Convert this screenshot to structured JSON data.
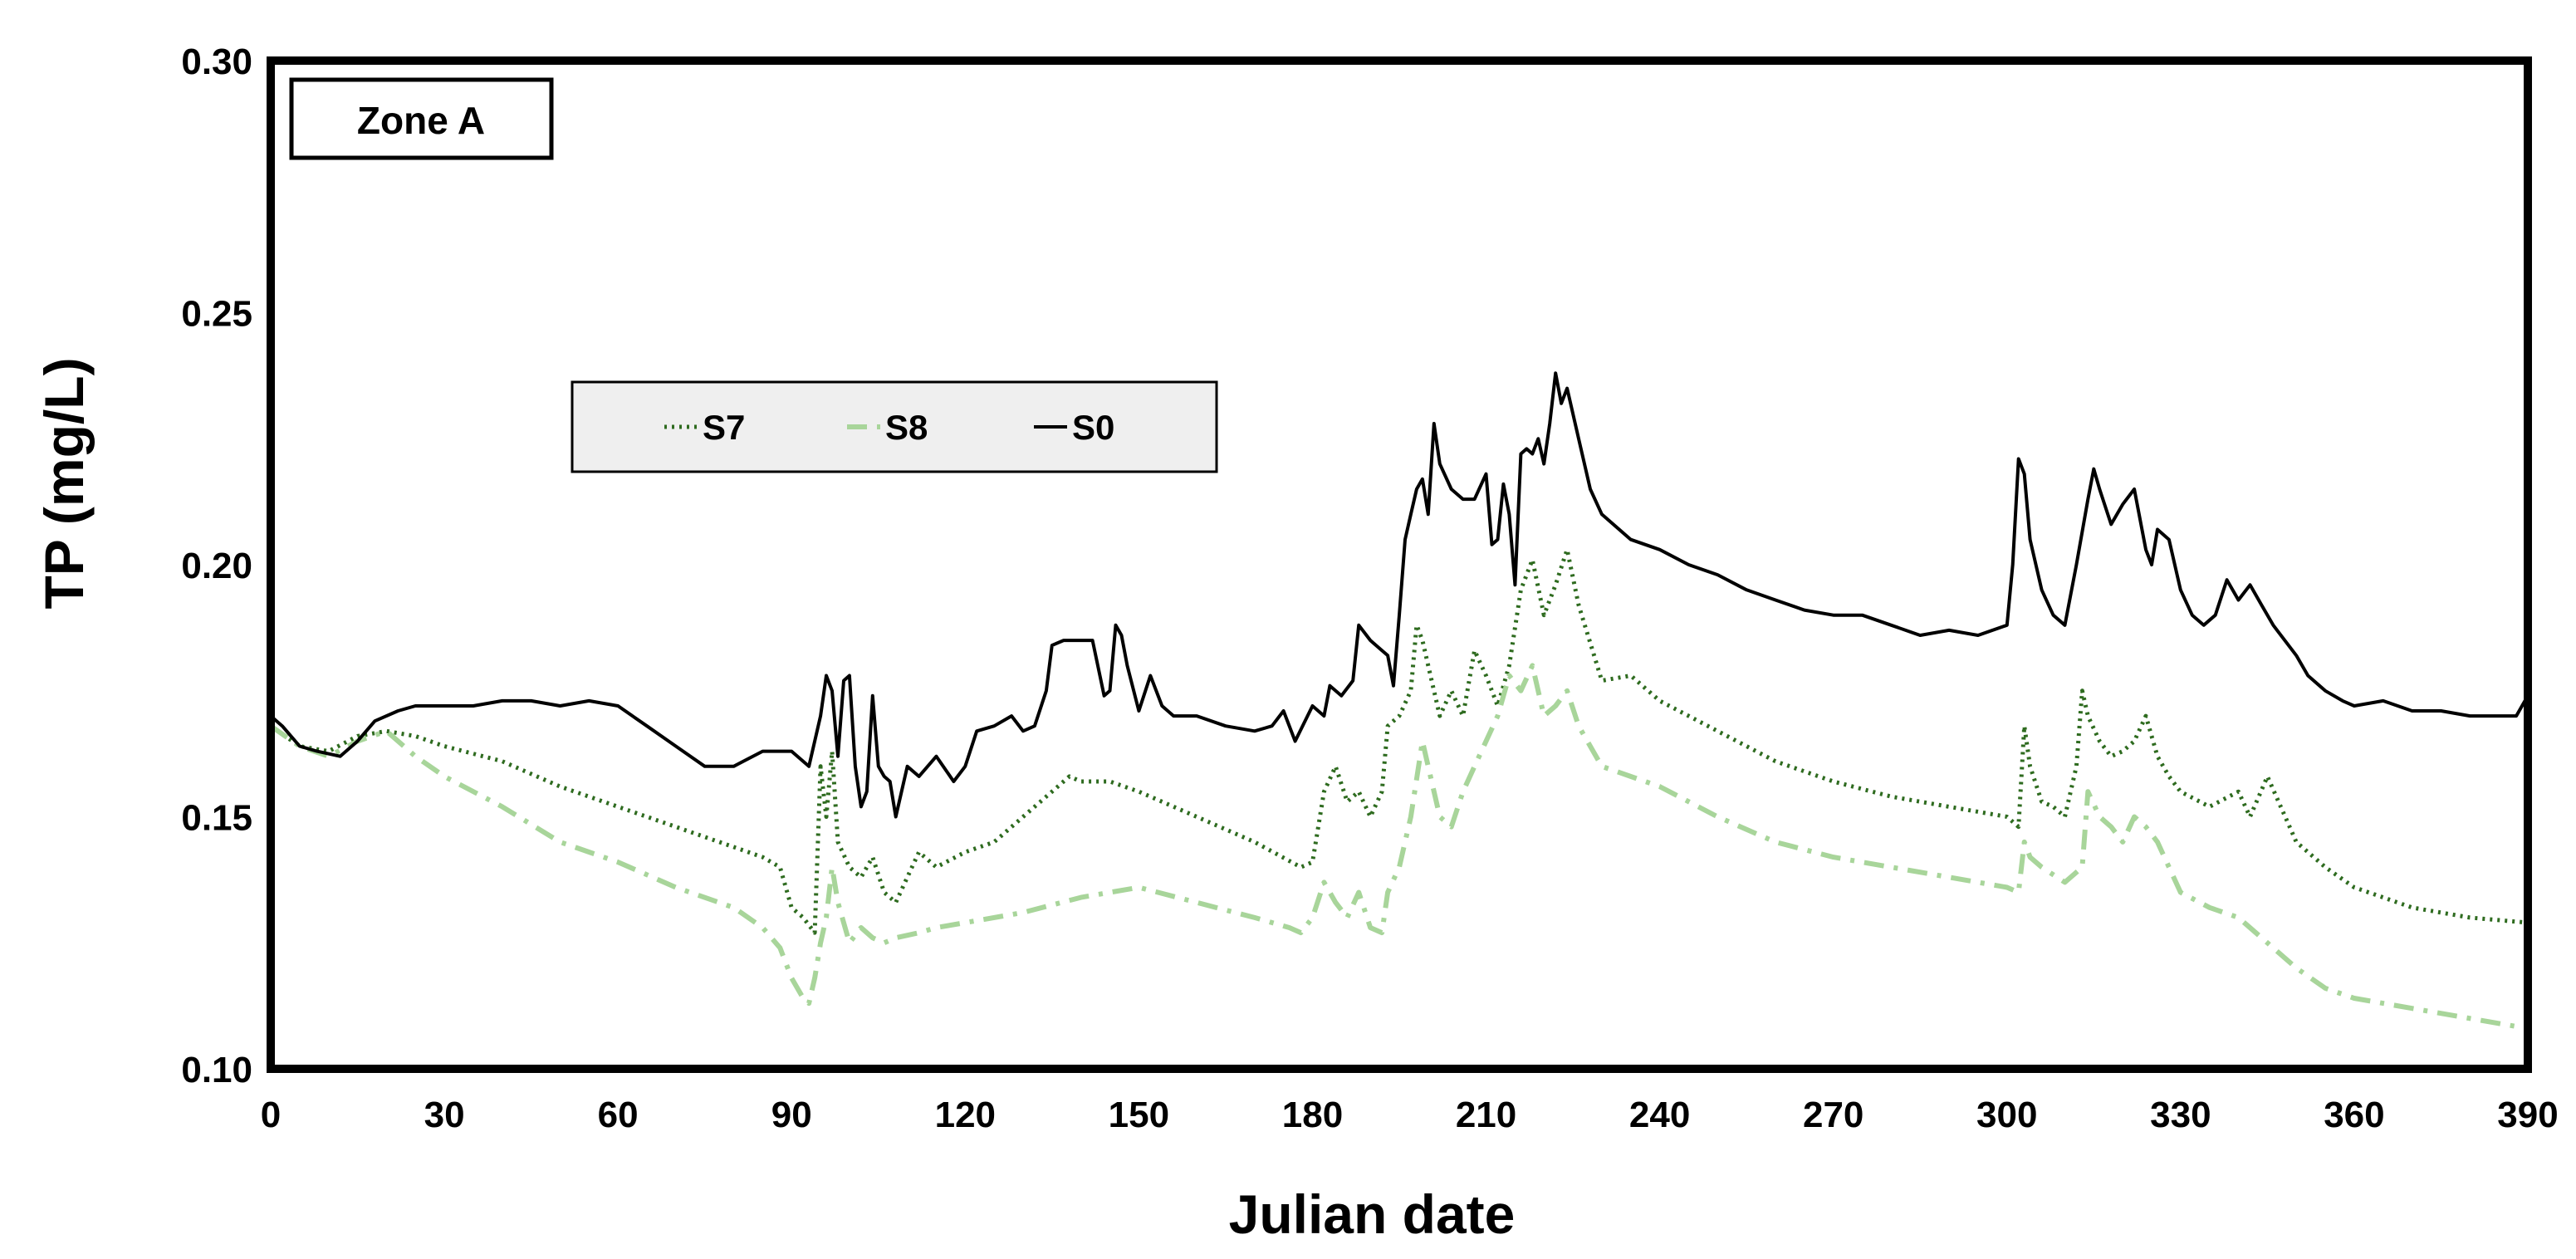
{
  "chart_data": {
    "type": "line",
    "title": "",
    "annotation": "Zone A",
    "xlabel": "Julian date",
    "ylabel": "TP (mg/L)",
    "xlim": [
      0,
      390
    ],
    "ylim": [
      0.1,
      0.3
    ],
    "xticks": [
      "0",
      "30",
      "60",
      "90",
      "120",
      "150",
      "180",
      "210",
      "240",
      "270",
      "300",
      "330",
      "360",
      "390"
    ],
    "yticks": [
      "0.10",
      "0.15",
      "0.20",
      "0.25",
      "0.30"
    ],
    "grid": false,
    "legend_position": "upper-left",
    "series": [
      {
        "name": "S7",
        "color": "#2e6b1f",
        "style": "dotted",
        "x": [
          0,
          5,
          10,
          15,
          20,
          25,
          30,
          40,
          50,
          60,
          70,
          75,
          80,
          85,
          88,
          90,
          92,
          94,
          95,
          96,
          97,
          98,
          100,
          102,
          104,
          106,
          108,
          110,
          112,
          115,
          120,
          125,
          130,
          135,
          138,
          140,
          145,
          150,
          160,
          170,
          178,
          180,
          182,
          184,
          186,
          188,
          190,
          192,
          193,
          195,
          197,
          198,
          199,
          200,
          202,
          204,
          206,
          208,
          210,
          212,
          214,
          216,
          218,
          220,
          222,
          224,
          226,
          230,
          235,
          240,
          250,
          260,
          270,
          280,
          290,
          300,
          302,
          303,
          304,
          306,
          308,
          310,
          312,
          313,
          314,
          316,
          318,
          320,
          322,
          324,
          326,
          328,
          330,
          335,
          340,
          342,
          345,
          350,
          355,
          360,
          365,
          370,
          380,
          390
        ],
        "values": [
          0.168,
          0.164,
          0.163,
          0.166,
          0.167,
          0.166,
          0.164,
          0.161,
          0.156,
          0.152,
          0.148,
          0.146,
          0.144,
          0.142,
          0.14,
          0.132,
          0.13,
          0.127,
          0.16,
          0.15,
          0.163,
          0.145,
          0.14,
          0.138,
          0.142,
          0.135,
          0.133,
          0.138,
          0.143,
          0.14,
          0.143,
          0.145,
          0.15,
          0.155,
          0.158,
          0.157,
          0.157,
          0.155,
          0.15,
          0.145,
          0.14,
          0.141,
          0.155,
          0.16,
          0.153,
          0.155,
          0.15,
          0.155,
          0.168,
          0.17,
          0.175,
          0.188,
          0.185,
          0.18,
          0.17,
          0.175,
          0.17,
          0.183,
          0.178,
          0.172,
          0.18,
          0.195,
          0.201,
          0.19,
          0.196,
          0.203,
          0.192,
          0.177,
          0.178,
          0.173,
          0.167,
          0.161,
          0.157,
          0.154,
          0.152,
          0.15,
          0.148,
          0.168,
          0.16,
          0.153,
          0.152,
          0.15,
          0.16,
          0.175,
          0.17,
          0.165,
          0.162,
          0.163,
          0.165,
          0.17,
          0.162,
          0.158,
          0.155,
          0.152,
          0.155,
          0.15,
          0.158,
          0.145,
          0.14,
          0.136,
          0.134,
          0.132,
          0.13,
          0.129
        ]
      },
      {
        "name": "S8",
        "color": "#a8d59a",
        "style": "dash-dot",
        "x": [
          0,
          5,
          10,
          15,
          20,
          25,
          30,
          40,
          50,
          60,
          70,
          80,
          85,
          88,
          90,
          92,
          93,
          94,
          95,
          96,
          97,
          98,
          100,
          102,
          104,
          106,
          108,
          112,
          115,
          120,
          130,
          140,
          150,
          160,
          170,
          176,
          178,
          180,
          182,
          184,
          186,
          188,
          190,
          192,
          193,
          195,
          197,
          199,
          200,
          202,
          204,
          206,
          208,
          210,
          212,
          214,
          216,
          218,
          220,
          222,
          224,
          226,
          230,
          240,
          250,
          260,
          270,
          280,
          290,
          300,
          302,
          303,
          304,
          306,
          310,
          313,
          314,
          316,
          318,
          320,
          322,
          324,
          326,
          328,
          330,
          335,
          340,
          345,
          350,
          355,
          360,
          370,
          380,
          390
        ],
        "values": [
          0.168,
          0.164,
          0.162,
          0.165,
          0.167,
          0.162,
          0.158,
          0.152,
          0.145,
          0.141,
          0.136,
          0.132,
          0.128,
          0.124,
          0.118,
          0.114,
          0.113,
          0.118,
          0.125,
          0.13,
          0.14,
          0.133,
          0.125,
          0.128,
          0.126,
          0.125,
          0.126,
          0.127,
          0.128,
          0.129,
          0.131,
          0.134,
          0.136,
          0.133,
          0.13,
          0.128,
          0.127,
          0.13,
          0.137,
          0.133,
          0.13,
          0.135,
          0.128,
          0.127,
          0.135,
          0.14,
          0.15,
          0.165,
          0.16,
          0.15,
          0.148,
          0.155,
          0.16,
          0.165,
          0.17,
          0.178,
          0.175,
          0.18,
          0.17,
          0.172,
          0.175,
          0.168,
          0.16,
          0.156,
          0.15,
          0.145,
          0.142,
          0.14,
          0.138,
          0.136,
          0.135,
          0.145,
          0.142,
          0.14,
          0.137,
          0.14,
          0.155,
          0.15,
          0.148,
          0.145,
          0.15,
          0.148,
          0.145,
          0.14,
          0.135,
          0.132,
          0.13,
          0.125,
          0.12,
          0.116,
          0.114,
          0.112,
          0.11,
          0.108
        ]
      },
      {
        "name": "S0",
        "color": "#000000",
        "style": "solid",
        "x": [
          0,
          2,
          5,
          8,
          12,
          15,
          18,
          22,
          25,
          30,
          35,
          40,
          45,
          50,
          55,
          60,
          65,
          70,
          75,
          80,
          85,
          90,
          93,
          95,
          96,
          97,
          98,
          99,
          100,
          101,
          102,
          103,
          104,
          105,
          106,
          107,
          108,
          110,
          112,
          115,
          118,
          120,
          122,
          125,
          128,
          130,
          132,
          134,
          135,
          137,
          140,
          142,
          144,
          145,
          146,
          147,
          148,
          150,
          152,
          154,
          156,
          160,
          165,
          170,
          173,
          175,
          177,
          180,
          182,
          183,
          185,
          187,
          188,
          190,
          192,
          193,
          194,
          195,
          196,
          197,
          198,
          199,
          200,
          201,
          202,
          204,
          206,
          208,
          210,
          211,
          212,
          213,
          214,
          215,
          216,
          217,
          218,
          219,
          220,
          221,
          222,
          223,
          224,
          226,
          228,
          230,
          235,
          240,
          245,
          250,
          255,
          260,
          265,
          270,
          275,
          280,
          285,
          290,
          295,
          300,
          301,
          302,
          303,
          304,
          306,
          308,
          310,
          312,
          314,
          315,
          316,
          318,
          320,
          322,
          324,
          325,
          326,
          328,
          330,
          332,
          334,
          336,
          338,
          340,
          342,
          344,
          346,
          348,
          350,
          352,
          355,
          358,
          360,
          365,
          370,
          375,
          380,
          385,
          388,
          390
        ],
        "values": [
          0.17,
          0.168,
          0.164,
          0.163,
          0.162,
          0.165,
          0.169,
          0.171,
          0.172,
          0.172,
          0.172,
          0.173,
          0.173,
          0.172,
          0.173,
          0.172,
          0.168,
          0.164,
          0.16,
          0.16,
          0.163,
          0.163,
          0.16,
          0.17,
          0.178,
          0.175,
          0.162,
          0.177,
          0.178,
          0.16,
          0.152,
          0.155,
          0.174,
          0.16,
          0.158,
          0.157,
          0.15,
          0.16,
          0.158,
          0.162,
          0.157,
          0.16,
          0.167,
          0.168,
          0.17,
          0.167,
          0.168,
          0.175,
          0.184,
          0.185,
          0.185,
          0.185,
          0.174,
          0.175,
          0.188,
          0.186,
          0.18,
          0.171,
          0.178,
          0.172,
          0.17,
          0.17,
          0.168,
          0.167,
          0.168,
          0.171,
          0.165,
          0.172,
          0.17,
          0.176,
          0.174,
          0.177,
          0.188,
          0.185,
          0.183,
          0.182,
          0.176,
          0.19,
          0.205,
          0.21,
          0.215,
          0.217,
          0.21,
          0.228,
          0.22,
          0.215,
          0.213,
          0.213,
          0.218,
          0.204,
          0.205,
          0.216,
          0.21,
          0.196,
          0.222,
          0.223,
          0.222,
          0.225,
          0.22,
          0.228,
          0.238,
          0.232,
          0.235,
          0.225,
          0.215,
          0.21,
          0.205,
          0.203,
          0.2,
          0.198,
          0.195,
          0.193,
          0.191,
          0.19,
          0.19,
          0.188,
          0.186,
          0.187,
          0.186,
          0.188,
          0.2,
          0.221,
          0.218,
          0.205,
          0.195,
          0.19,
          0.188,
          0.2,
          0.213,
          0.219,
          0.215,
          0.208,
          0.212,
          0.215,
          0.203,
          0.2,
          0.207,
          0.205,
          0.195,
          0.19,
          0.188,
          0.19,
          0.197,
          0.193,
          0.196,
          0.192,
          0.188,
          0.185,
          0.182,
          0.178,
          0.175,
          0.173,
          0.172,
          0.173,
          0.171,
          0.171,
          0.17,
          0.17,
          0.17,
          0.174
        ]
      }
    ]
  }
}
